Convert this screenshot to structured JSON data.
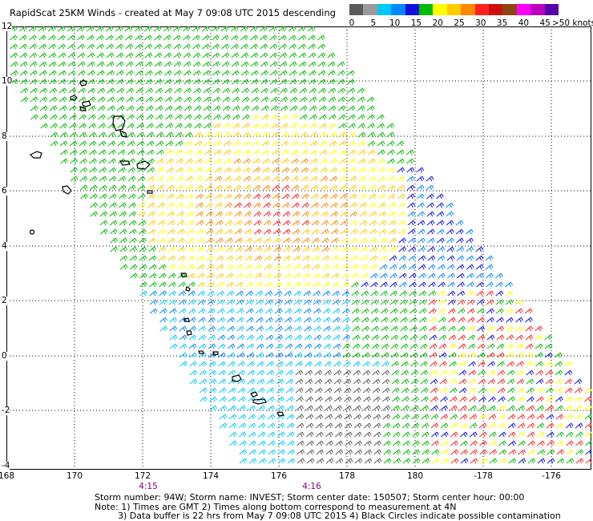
{
  "title": "RapidScat 25KM Winds - created at May  7 09:08 UTC 2015 descending",
  "scale": {
    "colors": [
      "#5a5a5a",
      "#9a9a9a",
      "#00c8ff",
      "#0088ff",
      "#1010dd",
      "#00bb00",
      "#ffff00",
      "#ffcc00",
      "#ff8800",
      "#ff2020",
      "#cc1010",
      "#8b4513",
      "#ff00ff",
      "#bb00bb",
      "#5500aa"
    ],
    "labels": [
      "0",
      "5",
      "10",
      "15",
      "20",
      "25",
      "30",
      "35",
      "40",
      "45",
      ">50 knots"
    ]
  },
  "map": {
    "lat_labels": [
      "12",
      "10",
      "8",
      "6",
      "4",
      "2",
      "0",
      "-2",
      "-4"
    ],
    "lon_labels": [
      "168",
      "170",
      "172",
      "174",
      "176",
      "178",
      "180",
      "-178",
      "-176"
    ],
    "time_marks": [
      "4:15",
      "4:16"
    ]
  },
  "footer": {
    "line1": "Storm number: 94W;  Storm name: INVEST;  Storm center date: 150507;  Storm center hour: 00:00",
    "line2": "Note: 1) Times are GMT  2) Times along bottom correspond to measurement at 4N",
    "line3": "3) Data buffer is 22 hrs from May  7 09:08 UTC 2015  4) Black Circles indicate possible contamination"
  }
}
